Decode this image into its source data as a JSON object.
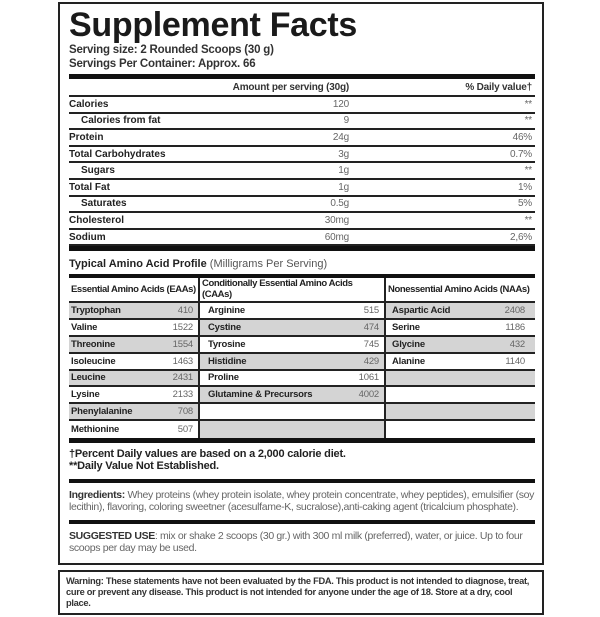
{
  "title": "Supplement Facts",
  "serving_size": "Serving size: 2 Rounded Scoops (30 g)",
  "servings_per_container": "Servings Per Container: Approx. 66",
  "nutrition": {
    "header_amount": "Amount per serving (30g)",
    "header_dv": "% Daily value†",
    "rows": [
      {
        "name": "Calories",
        "amount": "120",
        "dv": "**",
        "indent": false
      },
      {
        "name": "Calories from fat",
        "amount": "9",
        "dv": "**",
        "indent": true
      },
      {
        "name": "Protein",
        "amount": "24g",
        "dv": "46%",
        "indent": false
      },
      {
        "name": "Total Carbohydrates",
        "amount": "3g",
        "dv": "0.7%",
        "indent": false
      },
      {
        "name": "Sugars",
        "amount": "1g",
        "dv": "**",
        "indent": true
      },
      {
        "name": "Total Fat",
        "amount": "1g",
        "dv": "1%",
        "indent": false
      },
      {
        "name": "Saturates",
        "amount": "0.5g",
        "dv": "5%",
        "indent": true
      },
      {
        "name": "Cholesterol",
        "amount": "30mg",
        "dv": "**",
        "indent": false
      },
      {
        "name": "Sodium",
        "amount": "60mg",
        "dv": "2,6%",
        "indent": false
      }
    ]
  },
  "amino": {
    "title": "Typical Amino Acid Profile",
    "subtitle": "(Milligrams Per Serving)",
    "columns": [
      {
        "header": "Essential Amino Acids (EAAs)",
        "rows": [
          {
            "name": "Tryptophan",
            "value": "410"
          },
          {
            "name": "Valine",
            "value": "1522"
          },
          {
            "name": "Threonine",
            "value": "1554"
          },
          {
            "name": "Isoleucine",
            "value": "1463"
          },
          {
            "name": "Leucine",
            "value": "2431"
          },
          {
            "name": "Lysine",
            "value": "2133"
          },
          {
            "name": "Phenylalanine",
            "value": "708"
          },
          {
            "name": "Methionine",
            "value": "507"
          }
        ],
        "gray_start": 0
      },
      {
        "header": "Conditionally Essential Amino Acids (CAAs)",
        "rows": [
          {
            "name": "Arginine",
            "value": "515"
          },
          {
            "name": "Cystine",
            "value": "474"
          },
          {
            "name": "Tyrosine",
            "value": "745"
          },
          {
            "name": "Histidine",
            "value": "429"
          },
          {
            "name": "Proline",
            "value": "1061"
          },
          {
            "name": "Glutamine & Precursors",
            "value": "4002"
          },
          {
            "name": "",
            "value": ""
          },
          {
            "name": "",
            "value": ""
          }
        ],
        "gray_start": 1
      },
      {
        "header": "Nonessential Amino Acids (NAAs)",
        "rows": [
          {
            "name": "Aspartic Acid",
            "value": "2408"
          },
          {
            "name": "Serine",
            "value": "1186"
          },
          {
            "name": "Glycine",
            "value": "432"
          },
          {
            "name": "Alanine",
            "value": "1140"
          },
          {
            "name": "",
            "value": ""
          },
          {
            "name": "",
            "value": ""
          },
          {
            "name": "",
            "value": ""
          },
          {
            "name": "",
            "value": ""
          }
        ],
        "gray_start": 0
      }
    ]
  },
  "footnotes": [
    "†Percent Daily values are based on a 2,000 calorie diet.",
    "**Daily Value Not Established."
  ],
  "ingredients": {
    "label": "Ingredients:",
    "text": " Whey proteins (whey protein isolate, whey protein concentrate, whey peptides), emulsifier (soy lecithin), flavoring, coloring sweetner (acesulfame-K, sucralose),anti-caking agent (tricalcium phosphate)."
  },
  "suggested_use": {
    "label": "SUGGESTED USE",
    "text": ": mix or shake 2 scoops (30 gr.) with 300 ml milk (preferred), water, or juice. Up to four scoops per day may be used."
  },
  "warning": "Warning: These statements have not been evaluated by the FDA. This product is not intended to diagnose, treat, cure or prevent any disease. This product is not intended for anyone under the age of 18. Store at a dry, cool place."
}
